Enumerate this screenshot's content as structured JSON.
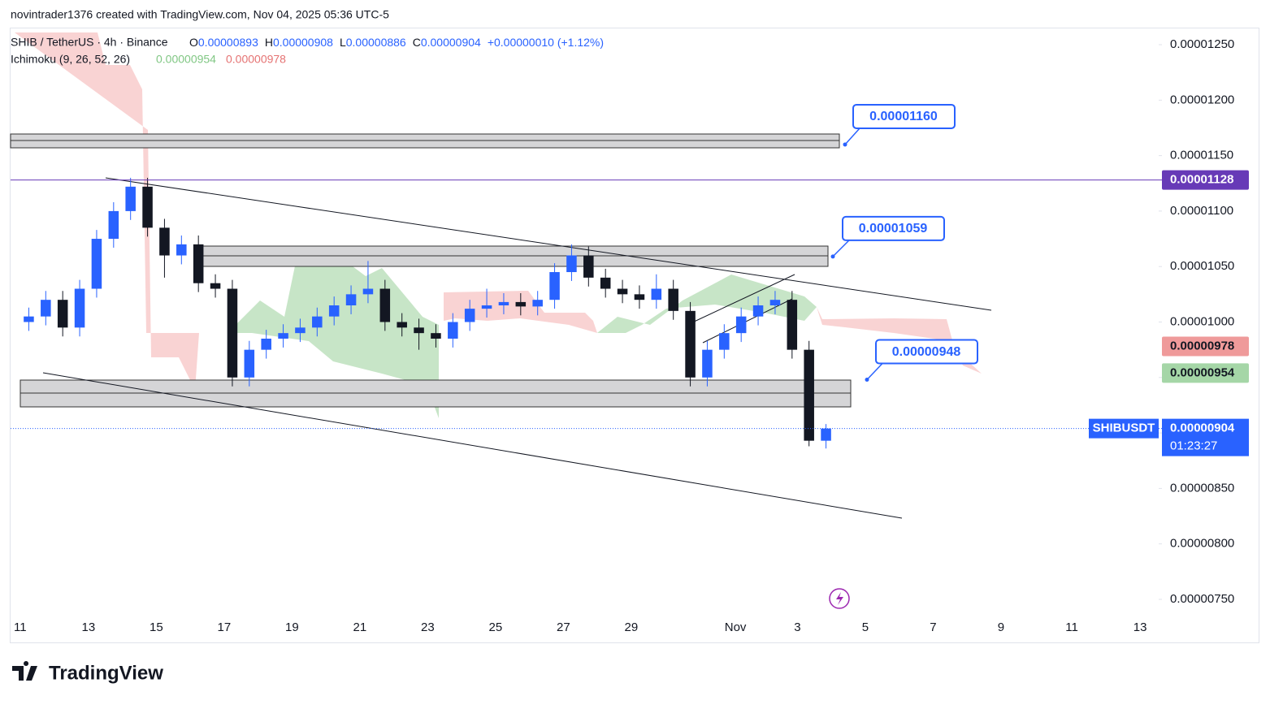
{
  "header": {
    "author": "novintrader1376 created with TradingView.com, Nov 04, 2025 05:36 UTC-5"
  },
  "legend": {
    "symbol": "SHIB / TetherUS · 4h · Binance",
    "ohlc": [
      {
        "key": "O",
        "value": "0.00000893"
      },
      {
        "key": "H",
        "value": "0.00000908"
      },
      {
        "key": "L",
        "value": "0.00000886"
      },
      {
        "key": "C",
        "value": "0.00000904"
      }
    ],
    "change": "+0.00000010 (+1.12%)",
    "indicator": "Ichimoku (9, 26, 52, 26)",
    "indicator_values": [
      "0.00000954",
      "0.00000978"
    ]
  },
  "chart_data": {
    "type": "candlestick",
    "up_color": "#2962ff",
    "down_color": "#131722",
    "ylim": [
      7.5e-06,
      1.25e-05
    ],
    "yticks": [
      {
        "value": 1.25e-05,
        "label": "0.00001250"
      },
      {
        "value": 1.2e-05,
        "label": "0.00001200"
      },
      {
        "value": 1.15e-05,
        "label": "0.00001150"
      },
      {
        "value": 1.1e-05,
        "label": "0.00001100"
      },
      {
        "value": 1.05e-05,
        "label": "0.00001050"
      },
      {
        "value": 1e-05,
        "label": "0.00001000"
      },
      {
        "value": 9.5e-06,
        "label": "0.00000950"
      },
      {
        "value": 9e-06,
        "label": "0.00000900"
      },
      {
        "value": 8.5e-06,
        "label": "0.00000850"
      },
      {
        "value": 8e-06,
        "label": "0.00000800"
      },
      {
        "value": 7.5e-06,
        "label": "0.00000750"
      }
    ],
    "xticks": [
      "11",
      "13",
      "15",
      "17",
      "19",
      "21",
      "23",
      "25",
      "27",
      "29",
      "Nov",
      "3",
      "5",
      "7",
      "9",
      "11",
      "13"
    ],
    "candles": [
      {
        "o": 1e-05,
        "h": 1.013e-05,
        "l": 9.92e-06,
        "c": 1.005e-05
      },
      {
        "o": 1.005e-05,
        "h": 1.028e-05,
        "l": 9.97e-06,
        "c": 1.02e-05
      },
      {
        "o": 1.02e-05,
        "h": 1.028e-05,
        "l": 9.87e-06,
        "c": 9.95e-06
      },
      {
        "o": 9.95e-06,
        "h": 1.038e-05,
        "l": 9.87e-06,
        "c": 1.03e-05
      },
      {
        "o": 1.03e-05,
        "h": 1.083e-05,
        "l": 1.022e-05,
        "c": 1.075e-05
      },
      {
        "o": 1.075e-05,
        "h": 1.108e-05,
        "l": 1.067e-05,
        "c": 1.1e-05
      },
      {
        "o": 1.1e-05,
        "h": 1.13e-05,
        "l": 1.092e-05,
        "c": 1.122e-05
      },
      {
        "o": 1.122e-05,
        "h": 1.13e-05,
        "l": 1.077e-05,
        "c": 1.085e-05
      },
      {
        "o": 1.085e-05,
        "h": 1.093e-05,
        "l": 1.04e-05,
        "c": 1.06e-05
      },
      {
        "o": 1.06e-05,
        "h": 1.078e-05,
        "l": 1.052e-05,
        "c": 1.07e-05
      },
      {
        "o": 1.07e-05,
        "h": 1.078e-05,
        "l": 1.027e-05,
        "c": 1.035e-05
      },
      {
        "o": 1.035e-05,
        "h": 1.043e-05,
        "l": 1.022e-05,
        "c": 1.03e-05
      },
      {
        "o": 1.03e-05,
        "h": 1.038e-05,
        "l": 9.42e-06,
        "c": 9.5e-06
      },
      {
        "o": 9.5e-06,
        "h": 9.83e-06,
        "l": 9.42e-06,
        "c": 9.75e-06
      },
      {
        "o": 9.75e-06,
        "h": 9.93e-06,
        "l": 9.67e-06,
        "c": 9.85e-06
      },
      {
        "o": 9.85e-06,
        "h": 9.98e-06,
        "l": 9.77e-06,
        "c": 9.9e-06
      },
      {
        "o": 9.9e-06,
        "h": 1.003e-05,
        "l": 9.82e-06,
        "c": 9.95e-06
      },
      {
        "o": 9.95e-06,
        "h": 1.013e-05,
        "l": 9.87e-06,
        "c": 1.005e-05
      },
      {
        "o": 1.005e-05,
        "h": 1.023e-05,
        "l": 9.97e-06,
        "c": 1.015e-05
      },
      {
        "o": 1.015e-05,
        "h": 1.033e-05,
        "l": 1.007e-05,
        "c": 1.025e-05
      },
      {
        "o": 1.025e-05,
        "h": 1.055e-05,
        "l": 1.017e-05,
        "c": 1.03e-05
      },
      {
        "o": 1.03e-05,
        "h": 1.038e-05,
        "l": 9.92e-06,
        "c": 1e-05
      },
      {
        "o": 1e-05,
        "h": 1.008e-05,
        "l": 9.87e-06,
        "c": 9.95e-06
      },
      {
        "o": 9.95e-06,
        "h": 1.003e-05,
        "l": 9.75e-06,
        "c": 9.9e-06
      },
      {
        "o": 9.9e-06,
        "h": 9.98e-06,
        "l": 9.77e-06,
        "c": 9.85e-06
      },
      {
        "o": 9.85e-06,
        "h": 1.008e-05,
        "l": 9.77e-06,
        "c": 1e-05
      },
      {
        "o": 1e-05,
        "h": 1.02e-05,
        "l": 9.92e-06,
        "c": 1.012e-05
      },
      {
        "o": 1.012e-05,
        "h": 1.03e-05,
        "l": 1.004e-05,
        "c": 1.015e-05
      },
      {
        "o": 1.015e-05,
        "h": 1.026e-05,
        "l": 1.007e-05,
        "c": 1.018e-05
      },
      {
        "o": 1.018e-05,
        "h": 1.026e-05,
        "l": 1.006e-05,
        "c": 1.014e-05
      },
      {
        "o": 1.014e-05,
        "h": 1.028e-05,
        "l": 1.006e-05,
        "c": 1.02e-05
      },
      {
        "o": 1.02e-05,
        "h": 1.053e-05,
        "l": 1.012e-05,
        "c": 1.045e-05
      },
      {
        "o": 1.045e-05,
        "h": 1.07e-05,
        "l": 1.037e-05,
        "c": 1.06e-05
      },
      {
        "o": 1.06e-05,
        "h": 1.068e-05,
        "l": 1.032e-05,
        "c": 1.04e-05
      },
      {
        "o": 1.04e-05,
        "h": 1.048e-05,
        "l": 1.022e-05,
        "c": 1.03e-05
      },
      {
        "o": 1.03e-05,
        "h": 1.038e-05,
        "l": 1.017e-05,
        "c": 1.025e-05
      },
      {
        "o": 1.025e-05,
        "h": 1.033e-05,
        "l": 1.012e-05,
        "c": 1.02e-05
      },
      {
        "o": 1.02e-05,
        "h": 1.043e-05,
        "l": 1.012e-05,
        "c": 1.03e-05
      },
      {
        "o": 1.03e-05,
        "h": 1.038e-05,
        "l": 1.002e-05,
        "c": 1.01e-05
      },
      {
        "o": 1.01e-05,
        "h": 1.018e-05,
        "l": 9.42e-06,
        "c": 9.5e-06
      },
      {
        "o": 9.5e-06,
        "h": 9.83e-06,
        "l": 9.42e-06,
        "c": 9.75e-06
      },
      {
        "o": 9.75e-06,
        "h": 9.98e-06,
        "l": 9.67e-06,
        "c": 9.9e-06
      },
      {
        "o": 9.9e-06,
        "h": 1.013e-05,
        "l": 9.82e-06,
        "c": 1.005e-05
      },
      {
        "o": 1.005e-05,
        "h": 1.023e-05,
        "l": 9.97e-06,
        "c": 1.015e-05
      },
      {
        "o": 1.015e-05,
        "h": 1.028e-05,
        "l": 1.007e-05,
        "c": 1.02e-05
      },
      {
        "o": 1.02e-05,
        "h": 1.028e-05,
        "l": 9.67e-06,
        "c": 9.75e-06
      },
      {
        "o": 9.75e-06,
        "h": 9.83e-06,
        "l": 8.88e-06,
        "c": 8.93e-06
      },
      {
        "o": 8.93e-06,
        "h": 9.08e-06,
        "l": 8.86e-06,
        "c": 9.04e-06
      }
    ],
    "annotations": [
      {
        "value": 1.16e-05,
        "label": "0.00001160"
      },
      {
        "value": 1.059e-05,
        "label": "0.00001059"
      },
      {
        "value": 9.48e-06,
        "label": "0.00000948"
      }
    ],
    "price_labels": [
      {
        "value": 1.128e-05,
        "label": "0.00001128",
        "color": "#673ab7"
      },
      {
        "value": 9.78e-06,
        "label": "0.00000978",
        "color": "#ef9a9a"
      },
      {
        "value": 9.54e-06,
        "label": "0.00000954",
        "color": "#a5d6a7"
      },
      {
        "value": 9.04e-06,
        "label": "0.00000904",
        "color": "#2962ff"
      }
    ],
    "symbol_tag": "SHIBUSDT",
    "countdown": "01:23:27"
  },
  "footer": {
    "brand": "TradingView"
  }
}
